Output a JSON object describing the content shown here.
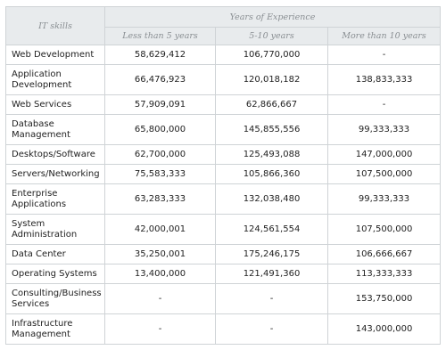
{
  "table": {
    "header": {
      "skill": "IT skills",
      "group": "Years of Experience",
      "columns": [
        "Less than 5 years",
        "5-10 years",
        "More than 10 years"
      ]
    },
    "rows": [
      [
        "Web Development",
        "58,629,412",
        "106,770,000",
        "-"
      ],
      [
        "Application Development",
        "66,476,923",
        "120,018,182",
        "138,833,333"
      ],
      [
        "Web Services",
        "57,909,091",
        "62,866,667",
        "-"
      ],
      [
        "Database Management",
        "65,800,000",
        "145,855,556",
        "99,333,333"
      ],
      [
        "Desktops/Software",
        "62,700,000",
        "125,493,088",
        "147,000,000"
      ],
      [
        "Servers/Networking",
        "75,583,333",
        "105,866,360",
        "107,500,000"
      ],
      [
        "Enterprise Applications",
        "63,283,333",
        "132,038,480",
        "99,333,333"
      ],
      [
        "System Administration",
        "42,000,001",
        "124,561,554",
        "107,500,000"
      ],
      [
        "Data Center",
        "35,250,001",
        "175,246,175",
        "106,666,667"
      ],
      [
        "Operating Systems",
        "13,400,000",
        "121,491,360",
        "113,333,333"
      ],
      [
        "Consulting/Business Services",
        "-",
        "-",
        "153,750,000"
      ],
      [
        "Infrastructure Management",
        "-",
        "-",
        "143,000,000"
      ]
    ]
  }
}
